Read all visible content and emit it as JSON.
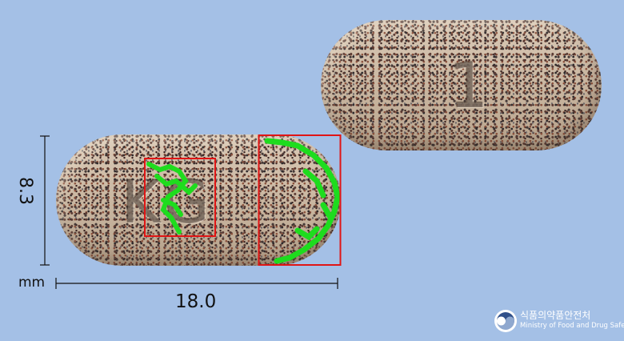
{
  "back_pill": {
    "imprint": "1"
  },
  "front_pill": {
    "imprint": "KG"
  },
  "dimensions": {
    "height": "8.3",
    "unit": "mm",
    "width": "18.0"
  },
  "agency": {
    "name_ko": "식품의약품안전처",
    "name_en": "Ministry of Food and Drug Safety"
  },
  "colors": {
    "background": "#a4c0e6",
    "highlight_box": "#e01515",
    "highlight_mark": "#1edc1e",
    "pill": "#cdbba6"
  }
}
